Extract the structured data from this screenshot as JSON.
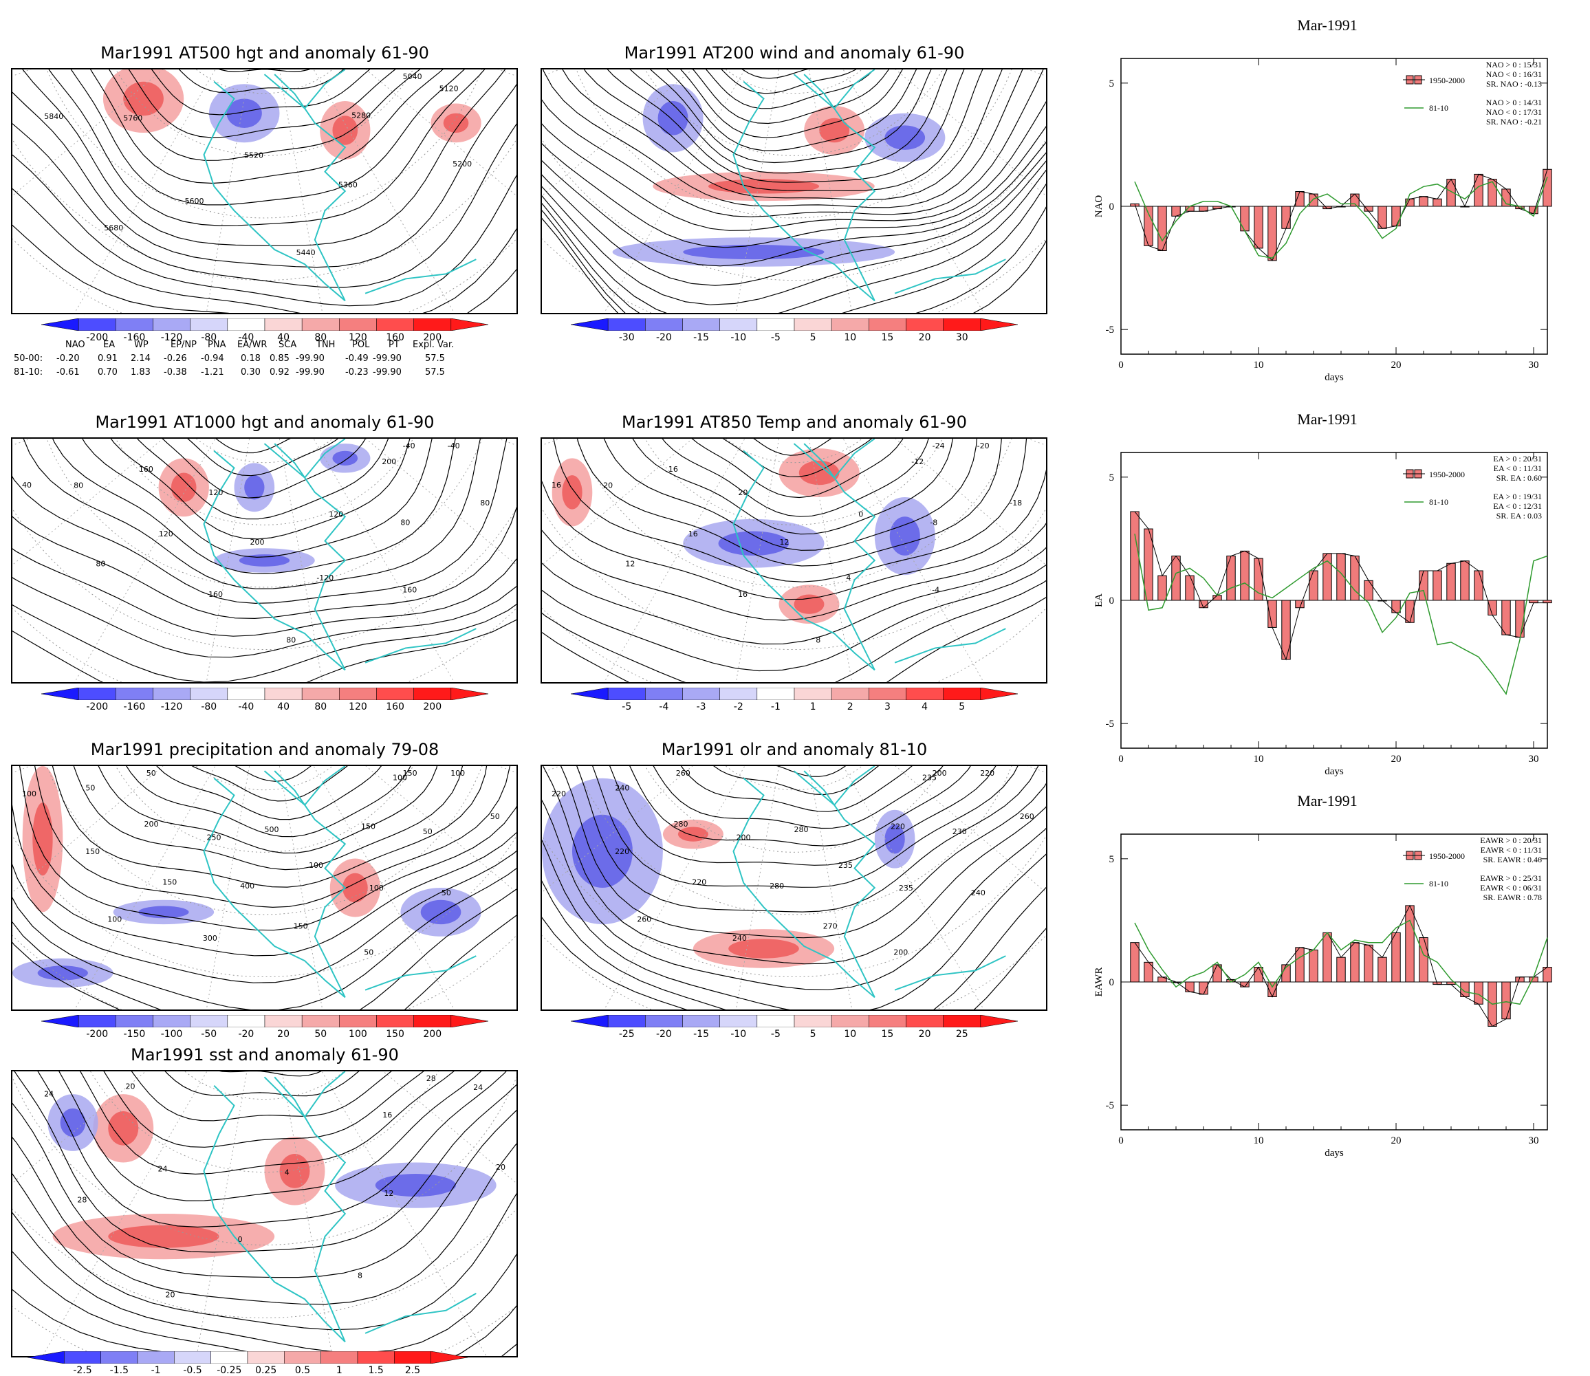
{
  "colors": {
    "frame": "#000000",
    "coast": "#2ec4c4",
    "contour": "#000000",
    "positive": "#e8303a",
    "negative": "#2a2ae8",
    "bar_fill": "#f07b7b",
    "line_8110": "#2e9a2e"
  },
  "maps": [
    {
      "id": "z500",
      "title": "Mar1991 AT500 hgt and anomaly 61-90",
      "labels": [
        "5040",
        "5120",
        "5200",
        "5280",
        "5360",
        "5440",
        "5520",
        "5600",
        "5680",
        "5760",
        "5840"
      ]
    },
    {
      "id": "wind200",
      "title": "Mar1991 AT200 wind and anomaly 61-90",
      "labels": []
    },
    {
      "id": "z1000",
      "title": "Mar1991 AT1000 hgt and anomaly 61-90",
      "labels": [
        "-40",
        "-40",
        "80",
        "200",
        "80",
        "160",
        "120",
        "-120",
        "80",
        "200",
        "160",
        "120",
        "120",
        "80",
        "160",
        "80",
        "40"
      ]
    },
    {
      "id": "t850",
      "title": "Mar1991 AT850 Temp and anomaly 61-90",
      "labels": [
        "-24",
        "-20",
        "-18",
        "-12",
        "-8",
        "-4",
        "0",
        "4",
        "8",
        "12",
        "16",
        "20",
        "16",
        "12",
        "16",
        "20",
        "16"
      ]
    },
    {
      "id": "precip",
      "title": "Mar1991 precipitation and anomaly 79-08",
      "labels": [
        "150",
        "100",
        "50",
        "100",
        "50",
        "50",
        "150",
        "100",
        "50",
        "100",
        "150",
        "500",
        "400",
        "300",
        "250",
        "150",
        "100",
        "200",
        "150",
        "50",
        "50",
        "100"
      ]
    },
    {
      "id": "olr",
      "title": "Mar1991 olr and anomaly 81-10",
      "labels": [
        "200",
        "220",
        "260",
        "235",
        "230",
        "240",
        "220",
        "235",
        "200",
        "235",
        "270",
        "280",
        "280",
        "240",
        "200",
        "220",
        "260",
        "280",
        "220",
        "260",
        "240",
        "220"
      ]
    },
    {
      "id": "sst",
      "title": "Mar1991 sst and anomaly 61-90",
      "labels": [
        "28",
        "24",
        "20",
        "16",
        "12",
        "8",
        "4",
        "0",
        "20",
        "24",
        "28",
        "20",
        "24"
      ]
    }
  ],
  "colorbars": {
    "hgt": [
      "-200",
      "-160",
      "-120",
      "-80",
      "-40",
      "40",
      "80",
      "120",
      "160",
      "200"
    ],
    "wind": [
      "-30",
      "-20",
      "-15",
      "-10",
      "-5",
      "5",
      "10",
      "15",
      "20",
      "30"
    ],
    "temp": [
      "-5",
      "-4",
      "-3",
      "-2",
      "-1",
      "1",
      "2",
      "3",
      "4",
      "5"
    ],
    "precip": [
      "-200",
      "-150",
      "-100",
      "-50",
      "-20",
      "20",
      "50",
      "100",
      "150",
      "200"
    ],
    "olr": [
      "-25",
      "-20",
      "-15",
      "-10",
      "-5",
      "5",
      "10",
      "15",
      "20",
      "25"
    ],
    "sst": [
      "-2.5",
      "-1.5",
      "-1",
      "-0.5",
      "-0.25",
      "0.25",
      "0.5",
      "1",
      "1.5",
      "2.5"
    ]
  },
  "index_table": {
    "headers": [
      "NAO",
      "EA",
      "WP",
      "EP/NP",
      "PNA",
      "EA/WR",
      "SCA",
      "TNH",
      "POL",
      "PT",
      "Expl. Var."
    ],
    "rows": [
      {
        "label": "50-00:",
        "values": [
          "-0.20",
          "0.91",
          "2.14",
          "-0.26",
          "-0.94",
          "0.18",
          "0.85",
          "-99.90",
          "-0.49",
          "-99.90",
          "57.5"
        ]
      },
      {
        "label": "81-10:",
        "values": [
          "-0.61",
          "0.70",
          "1.83",
          "-0.38",
          "-1.21",
          "0.30",
          "0.92",
          "-99.90",
          "-0.23",
          "-99.90",
          "57.5"
        ]
      }
    ]
  },
  "chart_data": [
    {
      "type": "bar",
      "title": "Mar-1991",
      "xlabel": "days",
      "ylabel": "NAO",
      "xlim": [
        0,
        31
      ],
      "ylim": [
        -6,
        6
      ],
      "xticks": [
        "0",
        "10",
        "20",
        "30"
      ],
      "yticks": [
        "-5",
        "0",
        "5"
      ],
      "legend_position": "top-right",
      "legend": {
        "bar_label": "1950-2000",
        "line_label": "81-10"
      },
      "stats_1950_2000": [
        "NAO > 0 : 15/31",
        "NAO < 0 : 16/31",
        "SR. NAO : -0.13"
      ],
      "stats_8110": [
        "NAO > 0 : 14/31",
        "NAO < 0 : 17/31",
        "SR. NAO : -0.21"
      ],
      "days": [
        1,
        2,
        3,
        4,
        5,
        6,
        7,
        8,
        9,
        10,
        11,
        12,
        13,
        14,
        15,
        16,
        17,
        18,
        19,
        20,
        21,
        22,
        23,
        24,
        25,
        26,
        27,
        28,
        29,
        30,
        31
      ],
      "series": [
        {
          "name": "1950-2000",
          "values": [
            0.1,
            -1.6,
            -1.8,
            -0.4,
            -0.2,
            -0.2,
            -0.1,
            0.0,
            -1.0,
            -1.7,
            -2.2,
            -0.9,
            0.6,
            0.5,
            -0.1,
            0.0,
            0.5,
            -0.2,
            -0.9,
            -0.8,
            0.3,
            0.4,
            0.3,
            1.1,
            0.0,
            1.3,
            1.1,
            0.7,
            -0.1,
            -0.3,
            1.5
          ]
        },
        {
          "name": "81-10",
          "values": [
            1.0,
            -0.3,
            -1.4,
            -0.6,
            0.0,
            0.2,
            0.2,
            0.0,
            -1.0,
            -2.0,
            -2.1,
            -1.5,
            -0.3,
            0.3,
            0.5,
            0.1,
            0.1,
            -0.5,
            -1.3,
            -0.9,
            0.5,
            0.8,
            0.9,
            0.6,
            0.3,
            0.8,
            1.0,
            0.1,
            0.0,
            -0.4,
            1.2
          ]
        }
      ]
    },
    {
      "type": "bar",
      "title": "Mar-1991",
      "xlabel": "days",
      "ylabel": "EA",
      "xlim": [
        0,
        31
      ],
      "ylim": [
        -6,
        6
      ],
      "xticks": [
        "0",
        "10",
        "20",
        "30"
      ],
      "yticks": [
        "-5",
        "0",
        "5"
      ],
      "legend_position": "top-right",
      "legend": {
        "bar_label": "1950-2000",
        "line_label": "81-10"
      },
      "stats_1950_2000": [
        "EA > 0 : 20/31",
        "EA < 0 : 11/31",
        "SR. EA : 0.60"
      ],
      "stats_8110": [
        "EA > 0 : 19/31",
        "EA < 0 : 12/31",
        "SR. EA : 0.03"
      ],
      "days": [
        1,
        2,
        3,
        4,
        5,
        6,
        7,
        8,
        9,
        10,
        11,
        12,
        13,
        14,
        15,
        16,
        17,
        18,
        19,
        20,
        21,
        22,
        23,
        24,
        25,
        26,
        27,
        28,
        29,
        30,
        31
      ],
      "series": [
        {
          "name": "1950-2000",
          "values": [
            3.6,
            2.9,
            1.0,
            1.8,
            1.0,
            -0.3,
            0.2,
            1.8,
            2.0,
            1.7,
            -1.1,
            -2.4,
            -0.3,
            1.2,
            1.9,
            1.9,
            1.8,
            0.8,
            0.0,
            -0.5,
            -0.9,
            1.2,
            1.2,
            1.5,
            1.6,
            1.2,
            -0.6,
            -1.4,
            -1.5,
            -0.1,
            -0.1
          ]
        },
        {
          "name": "81-10",
          "values": [
            2.7,
            -0.4,
            -0.3,
            1.1,
            1.3,
            0.9,
            0.2,
            0.5,
            0.7,
            0.3,
            0.1,
            0.5,
            0.9,
            1.3,
            1.6,
            1.1,
            0.4,
            -0.1,
            -1.3,
            -0.7,
            0.3,
            0.4,
            -1.8,
            -1.7,
            -2.0,
            -2.3,
            -3.0,
            -3.8,
            -1.6,
            1.6,
            1.8
          ]
        }
      ]
    },
    {
      "type": "bar",
      "title": "Mar-1991",
      "xlabel": "days",
      "ylabel": "EAWR",
      "xlim": [
        0,
        31
      ],
      "ylim": [
        -6,
        6
      ],
      "xticks": [
        "0",
        "10",
        "20",
        "30"
      ],
      "yticks": [
        "-5",
        "0",
        "5"
      ],
      "legend_position": "top-right",
      "legend": {
        "bar_label": "1950-2000",
        "line_label": "81-10"
      },
      "stats_1950_2000": [
        "EAWR > 0 : 20/31",
        "EAWR < 0 : 11/31",
        "SR. EAWR : 0.46"
      ],
      "stats_8110": [
        "EAWR > 0 : 25/31",
        "EAWR < 0 : 06/31",
        "SR. EAWR : 0.78"
      ],
      "days": [
        1,
        2,
        3,
        4,
        5,
        6,
        7,
        8,
        9,
        10,
        11,
        12,
        13,
        14,
        15,
        16,
        17,
        18,
        19,
        20,
        21,
        22,
        23,
        24,
        25,
        26,
        27,
        28,
        29,
        30,
        31
      ],
      "series": [
        {
          "name": "1950-2000",
          "values": [
            1.6,
            0.8,
            0.2,
            0.0,
            -0.4,
            -0.5,
            0.7,
            0.1,
            -0.2,
            0.6,
            -0.6,
            0.7,
            1.4,
            1.3,
            2.0,
            1.0,
            1.6,
            1.5,
            1.0,
            2.0,
            3.1,
            1.8,
            -0.1,
            -0.1,
            -0.6,
            -0.9,
            -1.8,
            -1.5,
            0.2,
            0.2,
            0.6
          ]
        },
        {
          "name": "81-10",
          "values": [
            2.4,
            1.3,
            0.5,
            -0.2,
            0.2,
            0.4,
            0.8,
            0.0,
            0.3,
            0.8,
            -0.2,
            0.6,
            1.0,
            1.3,
            2.0,
            1.3,
            1.7,
            1.6,
            1.6,
            2.2,
            2.5,
            1.1,
            0.8,
            0.1,
            -0.4,
            -0.5,
            -0.9,
            -0.8,
            -0.9,
            0.2,
            1.8
          ]
        }
      ]
    }
  ]
}
